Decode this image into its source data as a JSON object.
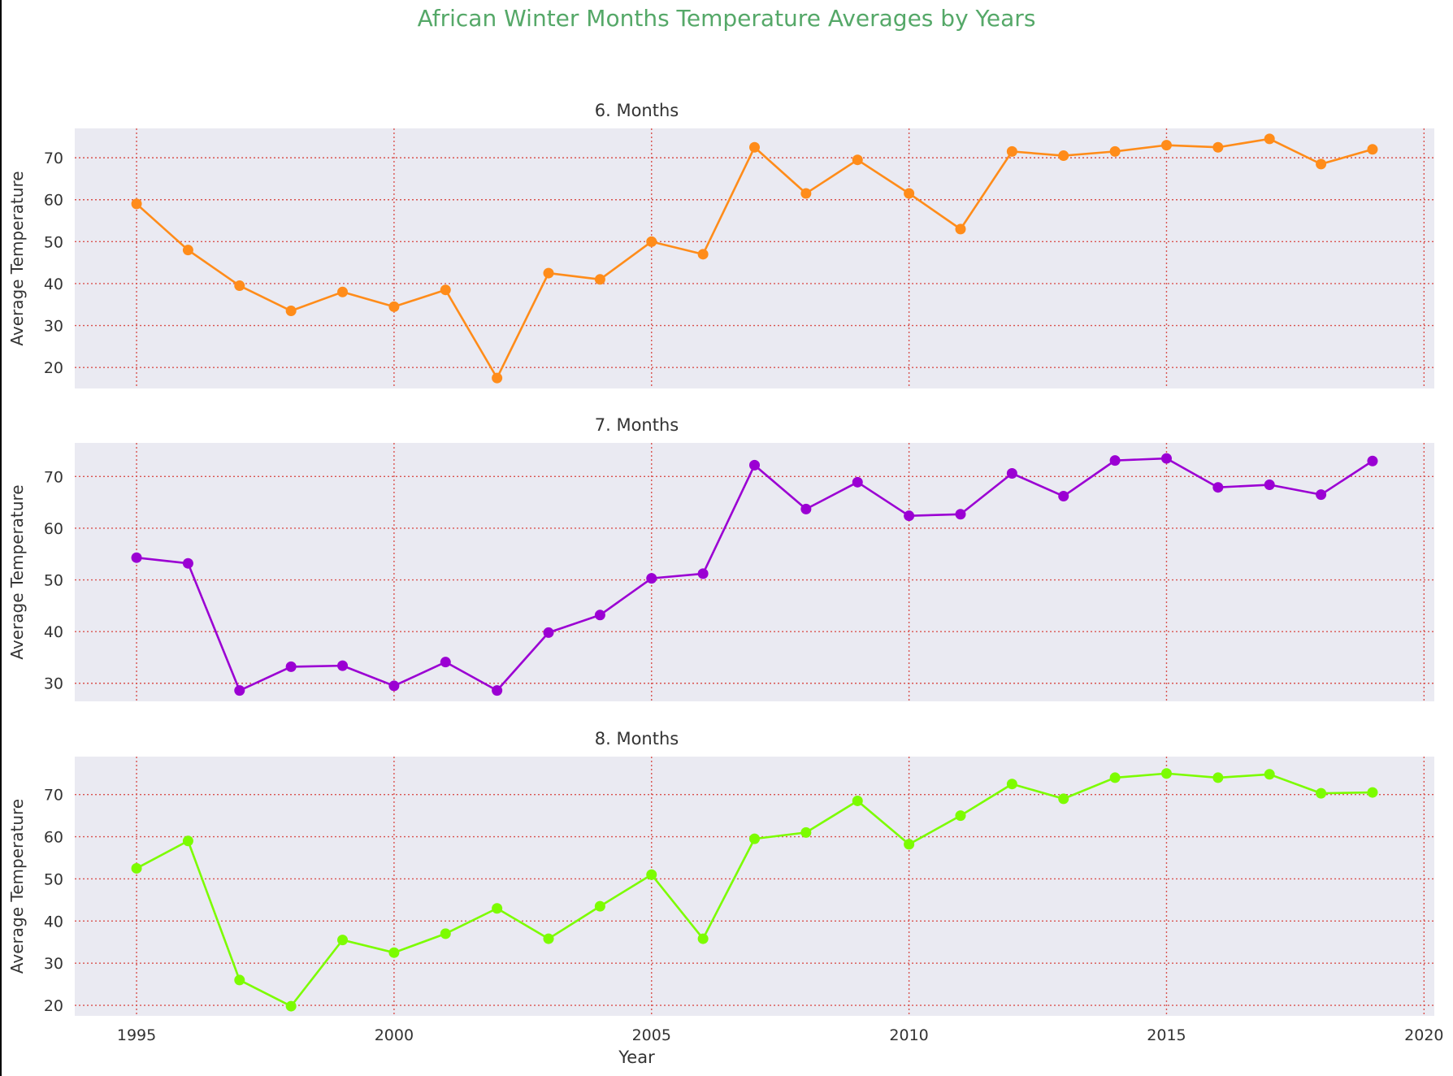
{
  "figure": {
    "title": "African Winter Months Temperature Averages by Years",
    "title_color": "#55a868",
    "axes_background": "#eaeaf2",
    "grid_color": "#d9534f",
    "text_color": "#333333"
  },
  "chart_data": [
    {
      "type": "line",
      "title": "6. Months",
      "xlabel": "",
      "ylabel": "Average Temperature",
      "color": "#ff8c1a",
      "marker": "circle",
      "grid": true,
      "grid_style": "dotted",
      "xlim": [
        1993.8,
        2020.2
      ],
      "ylim": [
        15,
        77
      ],
      "x_ticks": [
        1995,
        2000,
        2005,
        2010,
        2015,
        2020
      ],
      "x_tick_labels_visible": false,
      "y_ticks": [
        20,
        30,
        40,
        50,
        60,
        70
      ],
      "x": [
        1995,
        1996,
        1997,
        1998,
        1999,
        2000,
        2001,
        2002,
        2003,
        2004,
        2005,
        2006,
        2007,
        2008,
        2009,
        2010,
        2011,
        2012,
        2013,
        2014,
        2015,
        2016,
        2017,
        2018,
        2019
      ],
      "y": [
        59,
        48,
        39.5,
        33.5,
        38,
        34.5,
        38.5,
        17.5,
        42.5,
        41,
        50,
        47,
        72.5,
        61.5,
        69.5,
        61.5,
        53,
        71.5,
        70.5,
        71.5,
        73,
        72.5,
        74.5,
        68.5,
        72
      ]
    },
    {
      "type": "line",
      "title": "7. Months",
      "xlabel": "",
      "ylabel": "Average Temperature",
      "color": "#9b00d3",
      "marker": "circle",
      "grid": true,
      "grid_style": "dotted",
      "xlim": [
        1993.8,
        2020.2
      ],
      "ylim": [
        26.5,
        76.5
      ],
      "x_ticks": [
        1995,
        2000,
        2005,
        2010,
        2015,
        2020
      ],
      "x_tick_labels_visible": false,
      "y_ticks": [
        30,
        40,
        50,
        60,
        70
      ],
      "x": [
        1995,
        1996,
        1997,
        1998,
        1999,
        2000,
        2001,
        2002,
        2003,
        2004,
        2005,
        2006,
        2007,
        2008,
        2009,
        2010,
        2011,
        2012,
        2013,
        2014,
        2015,
        2016,
        2017,
        2018,
        2019
      ],
      "y": [
        54.3,
        53.2,
        28.6,
        33.2,
        33.4,
        29.5,
        34.1,
        28.6,
        39.8,
        43.2,
        50.3,
        51.2,
        72.2,
        63.7,
        68.9,
        62.4,
        62.7,
        70.6,
        66.2,
        73.1,
        73.5,
        67.9,
        68.4,
        66.5,
        73
      ]
    },
    {
      "type": "line",
      "title": "8. Months",
      "xlabel": "Year",
      "ylabel": "Average Temperature",
      "color": "#7cfc00",
      "marker": "circle",
      "grid": true,
      "grid_style": "dotted",
      "xlim": [
        1993.8,
        2020.2
      ],
      "ylim": [
        17.5,
        79
      ],
      "x_ticks": [
        1995,
        2000,
        2005,
        2010,
        2015,
        2020
      ],
      "x_tick_labels_visible": true,
      "y_ticks": [
        20,
        30,
        40,
        50,
        60,
        70
      ],
      "x": [
        1995,
        1996,
        1997,
        1998,
        1999,
        2000,
        2001,
        2002,
        2003,
        2004,
        2005,
        2006,
        2007,
        2008,
        2009,
        2010,
        2011,
        2012,
        2013,
        2014,
        2015,
        2016,
        2017,
        2018,
        2019
      ],
      "y": [
        52.5,
        59,
        26,
        19.8,
        35.5,
        32.5,
        37,
        43,
        35.8,
        43.5,
        51,
        35.8,
        59.5,
        61,
        68.5,
        58.2,
        65,
        72.5,
        69,
        74,
        75,
        74,
        74.8,
        70.3,
        70.5
      ]
    }
  ]
}
